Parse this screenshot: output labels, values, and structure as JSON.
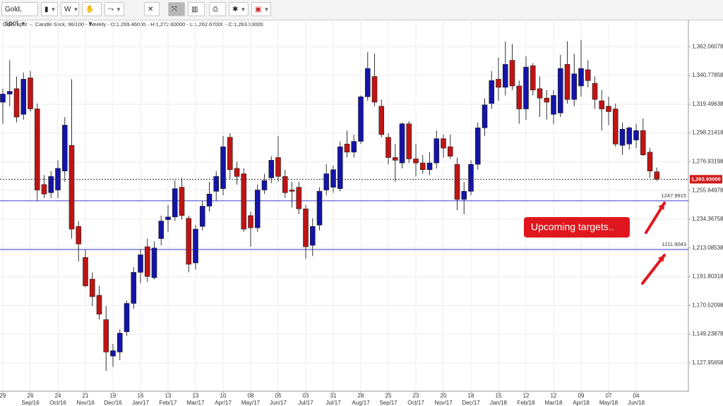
{
  "toolbar": {
    "symbol": "Gold, spot",
    "period": "W"
  },
  "chart_data": {
    "type": "candlestick",
    "header": "Gold, spot ⇔ Candle Stick, 96/100 - Weekly - O:1,269.46000 - H:1,272.60000 - L:1,262.67000 - C:1,263.93000",
    "categories": [
      "29",
      null,
      null,
      null,
      "26",
      null,
      null,
      null,
      "24",
      null,
      null,
      null,
      "21",
      null,
      null,
      null,
      "19",
      null,
      null,
      null,
      "16",
      null,
      null,
      null,
      "13",
      null,
      null,
      null,
      "13",
      null,
      null,
      null,
      "10",
      null,
      null,
      null,
      "08",
      null,
      null,
      null,
      "05",
      null,
      null,
      null,
      "03",
      null,
      null,
      null,
      "31",
      null,
      null,
      null,
      "28",
      null,
      null,
      null,
      "25",
      null,
      null,
      null,
      "23",
      null,
      null,
      null,
      "20",
      null,
      null,
      null,
      "18",
      null,
      null,
      null,
      "15",
      null,
      null,
      null,
      "12",
      null,
      null,
      null,
      "12",
      null,
      null,
      null,
      "09",
      null,
      null,
      null,
      "07",
      null,
      null,
      null,
      "04",
      null,
      null,
      null
    ],
    "category_months": [
      null,
      null,
      null,
      null,
      "Sep/16",
      null,
      null,
      null,
      "Oct/16",
      null,
      null,
      null,
      "Nov/16",
      null,
      null,
      null,
      "Dec/16",
      null,
      null,
      null,
      "Jan/17",
      null,
      null,
      null,
      "Feb/17",
      null,
      null,
      null,
      "Mar/17",
      null,
      null,
      null,
      "Apr/17",
      null,
      null,
      null,
      "May/17",
      null,
      null,
      null,
      "Jun/17",
      null,
      null,
      null,
      "Jul/17",
      null,
      null,
      null,
      "Jul/17",
      null,
      null,
      null,
      "Aug/17",
      null,
      null,
      null,
      "Sep/17",
      null,
      null,
      null,
      "Oct/17",
      null,
      null,
      null,
      "Nov/17",
      null,
      null,
      null,
      "Dec/17",
      null,
      null,
      null,
      "Jan/18",
      null,
      null,
      null,
      "Feb/18",
      null,
      null,
      null,
      "Mar/18",
      null,
      null,
      null,
      "Apr/18",
      null,
      null,
      null,
      "May/18",
      null,
      null,
      null,
      "Jun/18",
      null,
      null,
      null
    ],
    "open": [
      1321,
      1327,
      1331,
      1312,
      1339,
      1316,
      1260,
      1254,
      1256,
      1270,
      1289,
      1229,
      1206,
      1190,
      1178,
      1160,
      1133,
      1136,
      1151,
      1172,
      1195,
      1214,
      1191,
      1220,
      1234,
      1236,
      1258,
      1235,
      1202,
      1229,
      1244,
      1255,
      1257,
      1295,
      1272,
      1268,
      1237,
      1228,
      1256,
      1265,
      1280,
      1266,
      1256,
      1258,
      1242,
      1215,
      1230,
      1256,
      1258,
      1257,
      1290,
      1284,
      1292,
      1325,
      1340,
      1318,
      1295,
      1280,
      1276,
      1305,
      1279,
      1276,
      1271,
      1276,
      1294,
      1288,
      1275,
      1249,
      1255,
      1275,
      1302,
      1320,
      1338,
      1332,
      1352,
      1333,
      1316,
      1348,
      1331,
      1324,
      1312,
      1313,
      1349,
      1323,
      1333,
      1345,
      1335,
      1322,
      1318,
      1316,
      1289,
      1290,
      1293,
      1300,
      1284,
      1269.46
    ],
    "high": [
      1331,
      1352,
      1340,
      1343,
      1344,
      1320,
      1267,
      1270,
      1278,
      1310,
      1338,
      1233,
      1212,
      1195,
      1185,
      1170,
      1142,
      1153,
      1174,
      1199,
      1212,
      1220,
      1218,
      1237,
      1245,
      1263,
      1265,
      1237,
      1230,
      1248,
      1262,
      1270,
      1296,
      1298,
      1277,
      1272,
      1240,
      1260,
      1268,
      1281,
      1296,
      1271,
      1262,
      1262,
      1245,
      1235,
      1258,
      1275,
      1274,
      1292,
      1300,
      1297,
      1326,
      1358,
      1357,
      1323,
      1298,
      1290,
      1306,
      1307,
      1290,
      1282,
      1284,
      1300,
      1297,
      1297,
      1280,
      1262,
      1278,
      1306,
      1324,
      1344,
      1354,
      1366,
      1364,
      1337,
      1355,
      1350,
      1340,
      1330,
      1330,
      1356,
      1366,
      1357,
      1367,
      1352,
      1340,
      1330,
      1325,
      1320,
      1306,
      1303,
      1305,
      1309,
      1287,
      1272.6
    ],
    "low": [
      1305,
      1318,
      1306,
      1308,
      1314,
      1248,
      1250,
      1250,
      1250,
      1262,
      1220,
      1203,
      1184,
      1170,
      1160,
      1122,
      1125,
      1130,
      1148,
      1168,
      1187,
      1188,
      1190,
      1215,
      1225,
      1233,
      1234,
      1195,
      1197,
      1226,
      1240,
      1248,
      1252,
      1264,
      1260,
      1225,
      1214,
      1225,
      1253,
      1261,
      1262,
      1250,
      1243,
      1238,
      1205,
      1207,
      1226,
      1252,
      1254,
      1255,
      1280,
      1280,
      1290,
      1322,
      1318,
      1295,
      1275,
      1262,
      1272,
      1276,
      1266,
      1268,
      1267,
      1272,
      1280,
      1279,
      1241,
      1238,
      1252,
      1271,
      1296,
      1316,
      1322,
      1326,
      1330,
      1305,
      1308,
      1326,
      1310,
      1308,
      1305,
      1310,
      1320,
      1318,
      1325,
      1332,
      1316,
      1300,
      1304,
      1288,
      1282,
      1286,
      1287,
      1281,
      1265,
      1262.67
    ],
    "close": [
      1327,
      1329,
      1310,
      1338,
      1316,
      1256,
      1253,
      1266,
      1272,
      1304,
      1227,
      1216,
      1185,
      1177,
      1164,
      1136,
      1137,
      1150,
      1172,
      1195,
      1208,
      1192,
      1213,
      1233,
      1236,
      1257,
      1237,
      1201,
      1227,
      1244,
      1253,
      1266,
      1288,
      1271,
      1266,
      1227,
      1228,
      1256,
      1263,
      1278,
      1266,
      1254,
      1255,
      1242,
      1214,
      1229,
      1255,
      1268,
      1271,
      1288,
      1284,
      1292,
      1325,
      1346,
      1321,
      1297,
      1280,
      1278,
      1305,
      1279,
      1276,
      1271,
      1276,
      1294,
      1287,
      1281,
      1249,
      1255,
      1275,
      1302,
      1319,
      1337,
      1332,
      1349,
      1333,
      1316,
      1347,
      1330,
      1324,
      1321,
      1326,
      1346,
      1323,
      1342,
      1346,
      1337,
      1323,
      1316,
      1314,
      1290,
      1301,
      1302,
      1300,
      1282,
      1270,
      1263.93
    ],
    "up_color": "#1414a8",
    "down_color": "#c01414",
    "ylim": [
      1107,
      1381
    ],
    "yticks": [
      {
        "value": 1127.95658,
        "label": "1,127.95658"
      },
      {
        "value": 1149.23878,
        "label": "1,149.23878"
      },
      {
        "value": 1170.52098,
        "label": "1,170.52098"
      },
      {
        "value": 1191.80318,
        "label": "1,191.80318"
      },
      {
        "value": 1213.08538,
        "label": "1,213.08538"
      },
      {
        "value": 1234.36758,
        "label": "1,234.36758"
      },
      {
        "value": 1255.64978,
        "label": "1,255.64978"
      },
      {
        "value": 1276.93198,
        "label": "1,276.93198"
      },
      {
        "value": 1298.21418,
        "label": "1,298.21418"
      },
      {
        "value": 1319.49638,
        "label": "1,319.49638"
      },
      {
        "value": 1340.77858,
        "label": "1,340.77858"
      },
      {
        "value": 1362.06078,
        "label": "1,362.06078"
      }
    ],
    "grid": true,
    "hlines": [
      {
        "value": 1247.9915,
        "color": "#3a3ad0"
      },
      {
        "value": 1211.9043,
        "color": "#3a3ad0"
      }
    ],
    "last_price": {
      "value": 1263.93,
      "label": "1,263.93000",
      "color": "#d01818"
    },
    "annotation": "Upcoming targets.."
  }
}
